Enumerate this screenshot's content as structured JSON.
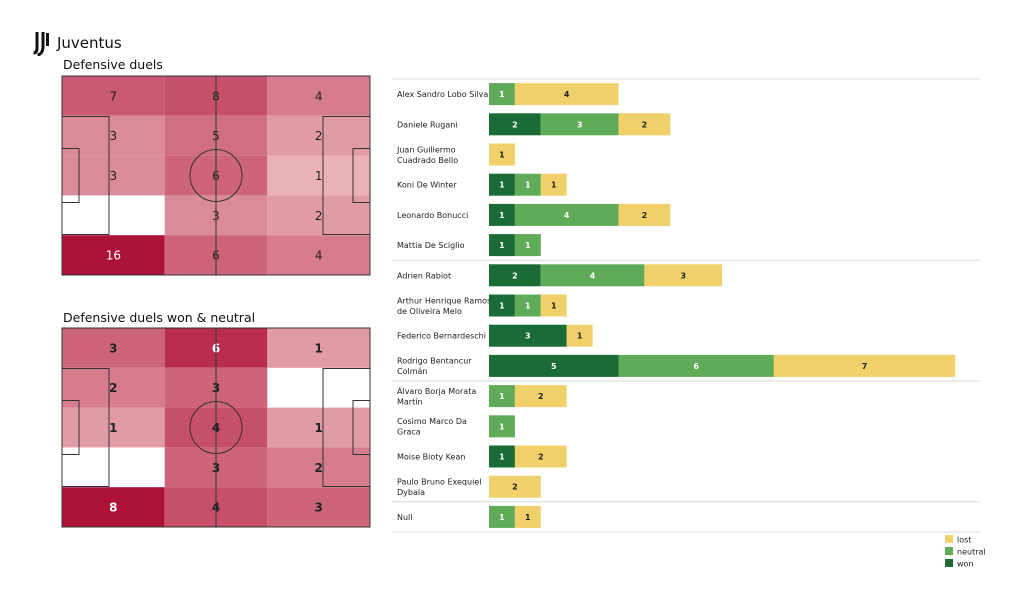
{
  "header": {
    "team": "Juventus",
    "logo_icon": "juventus-logo-icon"
  },
  "pitch_top": {
    "title": "Defensive duels",
    "grid": [
      [
        7,
        8,
        4
      ],
      [
        3,
        5,
        2
      ],
      [
        3,
        6,
        1
      ],
      [
        null,
        3,
        2
      ],
      [
        16,
        6,
        4
      ]
    ]
  },
  "pitch_bottom": {
    "title": "Defensive duels won & neutral",
    "grid": [
      [
        3,
        6,
        1
      ],
      [
        2,
        3,
        null
      ],
      [
        1,
        4,
        1
      ],
      [
        null,
        3,
        2
      ],
      [
        8,
        4,
        3
      ]
    ]
  },
  "colors": {
    "won": "#1a6b35",
    "neutral": "#60ab58",
    "lost": "#f0d06a"
  },
  "chart_data": [
    {
      "type": "heatmap",
      "title": "Defensive duels",
      "values": [
        [
          7,
          8,
          4
        ],
        [
          3,
          5,
          2
        ],
        [
          3,
          6,
          1
        ],
        [
          null,
          3,
          2
        ],
        [
          16,
          6,
          4
        ]
      ]
    },
    {
      "type": "heatmap",
      "title": "Defensive duels won & neutral",
      "values": [
        [
          3,
          6,
          1
        ],
        [
          2,
          3,
          null
        ],
        [
          1,
          4,
          1
        ],
        [
          null,
          3,
          2
        ],
        [
          8,
          4,
          3
        ]
      ]
    },
    {
      "type": "bar",
      "orientation": "horizontal",
      "stacked": true,
      "categories": [
        "Alex Sandro Lobo Silva",
        "Daniele Rugani",
        "Juan Guillermo Cuadrado Bello",
        "Koni De Winter",
        "Leonardo Bonucci",
        "Mattia De Sciglio",
        "Adrien Rabiot",
        "Arthur Henrique Ramos de Oliveira Melo",
        "Federico Bernardeschi",
        "Rodrigo Bentancur Colmán",
        "Álvaro Borja Morata Martín",
        "Cosimo Marco Da Graca",
        "Moise Bioty Kean",
        "Paulo Bruno Exequiel Dybala",
        "Null"
      ],
      "label_lines": [
        [
          "Alex Sandro Lobo Silva"
        ],
        [
          "Daniele Rugani"
        ],
        [
          "Juan Guillermo",
          "Cuadrado Bello"
        ],
        [
          "Koni De Winter"
        ],
        [
          "Leonardo Bonucci"
        ],
        [
          "Mattia De Sciglio"
        ],
        [
          "Adrien Rabiot"
        ],
        [
          "Arthur Henrique Ramos",
          "de Oliveira Melo"
        ],
        [
          "Federico Bernardeschi"
        ],
        [
          "Rodrigo Bentancur",
          "Colmán"
        ],
        [
          "Álvaro Borja Morata",
          "Martín"
        ],
        [
          "Cosimo Marco Da",
          "Graca"
        ],
        [
          "Moise Bioty Kean"
        ],
        [
          "Paulo Bruno Exequiel",
          "Dybala"
        ],
        [
          "Null"
        ]
      ],
      "series": [
        {
          "name": "won",
          "values": [
            0,
            2,
            0,
            1,
            1,
            1,
            2,
            1,
            3,
            5,
            0,
            0,
            1,
            0,
            0
          ]
        },
        {
          "name": "neutral",
          "values": [
            1,
            3,
            0,
            1,
            4,
            1,
            4,
            1,
            0,
            6,
            1,
            1,
            0,
            0,
            1
          ]
        },
        {
          "name": "lost",
          "values": [
            4,
            2,
            1,
            1,
            2,
            0,
            3,
            1,
            1,
            7,
            2,
            0,
            2,
            2,
            1
          ]
        }
      ],
      "legend": {
        "position": "bottom-right",
        "entries": [
          "lost",
          "neutral",
          "won"
        ]
      }
    }
  ]
}
